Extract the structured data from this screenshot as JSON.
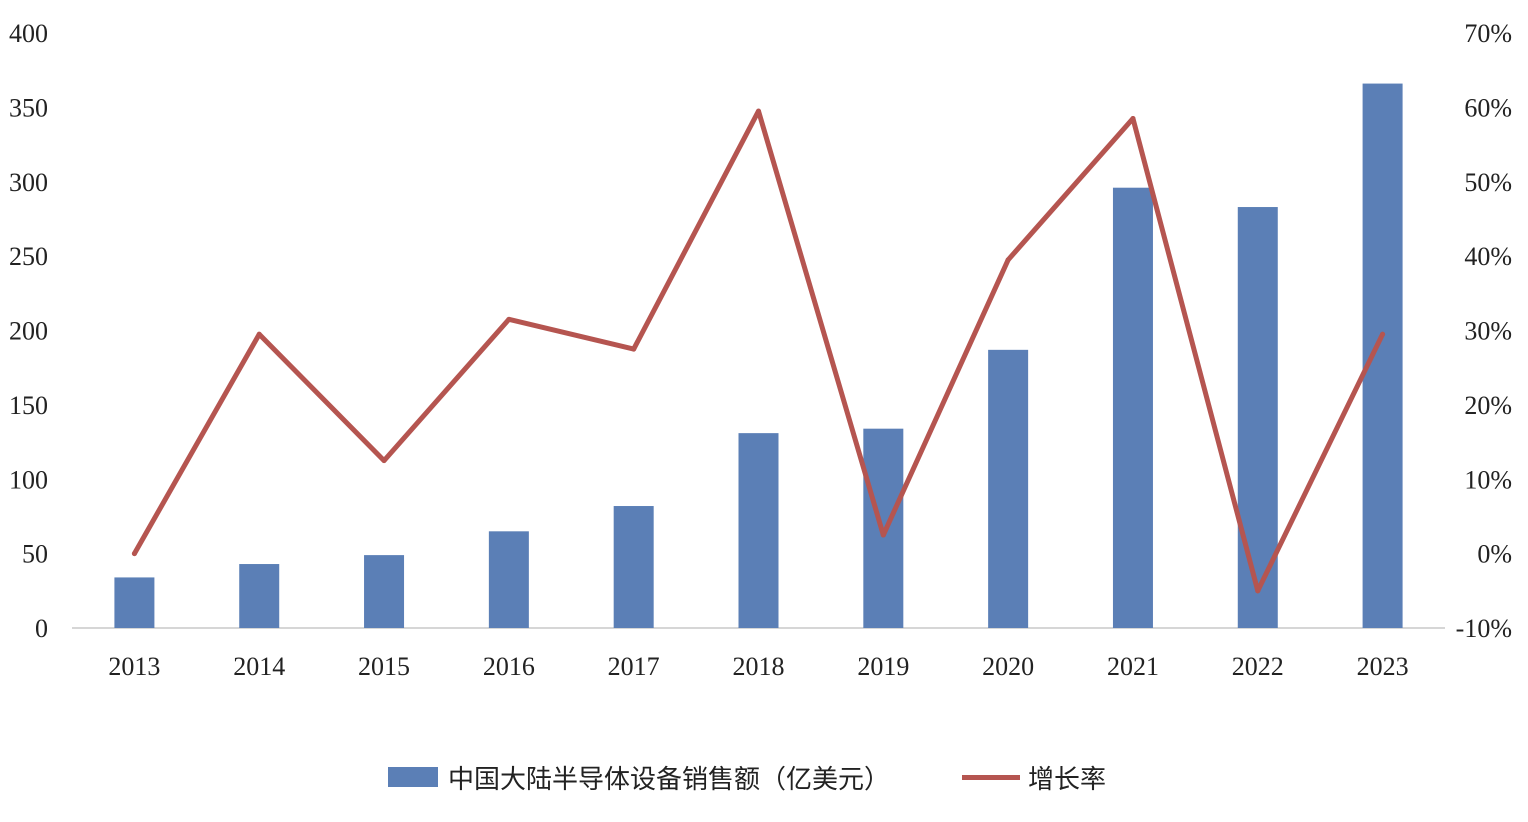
{
  "chart_data": {
    "type": "bar",
    "categories": [
      "2013",
      "2014",
      "2015",
      "2016",
      "2017",
      "2018",
      "2019",
      "2020",
      "2021",
      "2022",
      "2023"
    ],
    "series": [
      {
        "name": "中国大陆半导体设备销售额（亿美元）",
        "type": "bar",
        "axis": "left",
        "color": "#5b7fb6",
        "values": [
          34,
          43,
          49,
          65,
          82,
          131,
          134,
          187,
          296,
          283,
          366
        ]
      },
      {
        "name": "增长率",
        "type": "line",
        "axis": "right",
        "color": "#b55550",
        "values": [
          0.0,
          29.5,
          12.5,
          31.5,
          27.5,
          59.5,
          2.5,
          39.5,
          58.5,
          -5.0,
          29.5
        ]
      }
    ],
    "left_axis": {
      "min": 0,
      "max": 400,
      "step": 50,
      "ticks": [
        "0",
        "50",
        "100",
        "150",
        "200",
        "250",
        "300",
        "350",
        "400"
      ]
    },
    "right_axis": {
      "min": -10,
      "max": 70,
      "step": 10,
      "ticks": [
        "-10%",
        "0%",
        "10%",
        "20%",
        "30%",
        "40%",
        "50%",
        "60%",
        "70%"
      ]
    },
    "grid": false,
    "legend_position": "bottom"
  }
}
